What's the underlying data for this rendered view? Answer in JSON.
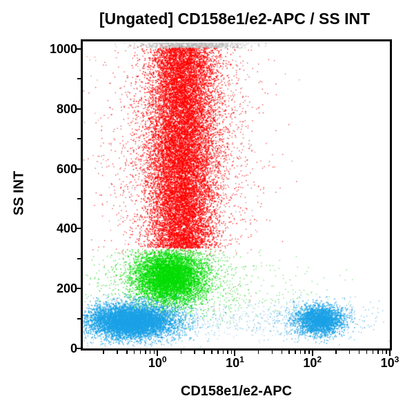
{
  "chart_data": {
    "type": "scatter",
    "title": "[Ungated] CD158e1/e2-APC / SS INT",
    "xlabel": "CD158e1/e2-APC",
    "ylabel": "SS INT",
    "x_scale": "log",
    "x_range_log10": [
      -0.964,
      3
    ],
    "y_scale": "linear",
    "y_range": [
      0,
      1025
    ],
    "grid": false,
    "legend": "none",
    "x_ticks": [
      {
        "base": "10",
        "exp": "0",
        "log10": 0
      },
      {
        "base": "10",
        "exp": "1",
        "log10": 1
      },
      {
        "base": "10",
        "exp": "2",
        "log10": 2
      },
      {
        "base": "10",
        "exp": "3",
        "log10": 3
      }
    ],
    "x_minor_tick_values": [
      0.2,
      0.3,
      0.4,
      0.5,
      0.6,
      0.7,
      0.8,
      0.9,
      2,
      3,
      4,
      5,
      6,
      7,
      8,
      9,
      20,
      30,
      40,
      50,
      60,
      70,
      80,
      90,
      200,
      300,
      400,
      500,
      600,
      700,
      800,
      900
    ],
    "y_ticks": [
      {
        "label": "0",
        "value": 0
      },
      {
        "label": "200",
        "value": 200
      },
      {
        "label": "400",
        "value": 400
      },
      {
        "label": "600",
        "value": 600
      },
      {
        "label": "800",
        "value": 800
      },
      {
        "label": "1000",
        "value": 1000
      }
    ],
    "y_minor_tick_values": [
      100,
      300,
      500,
      700,
      900
    ],
    "populations": [
      {
        "name": "saturated-events-gray",
        "color": "#bdbdbd",
        "alpha": 0.9,
        "size": 1.5,
        "count": 750,
        "x": {
          "dist": "normal",
          "mean_log": 0.45,
          "sigma_log": 0.33
        },
        "y": {
          "dist": "uniform",
          "min": 1004,
          "max": 1022
        }
      },
      {
        "name": "granulocytes-halo",
        "color": "#f20000",
        "alpha": 0.85,
        "size": 1.3,
        "count": 3000,
        "x": {
          "dist": "normal",
          "mean_log": 0.32,
          "sigma_log": 0.44
        },
        "y": {
          "dist": "normal",
          "mean": 660,
          "sigma": 215,
          "clip_min": 315,
          "clip_max": 1015
        }
      },
      {
        "name": "granulocytes-dark-speckles",
        "color": "#a80010",
        "alpha": 0.8,
        "size": 1.2,
        "count": 450,
        "x": {
          "dist": "normal",
          "mean_log": 0.32,
          "sigma_log": 0.5
        },
        "y": {
          "dist": "normal",
          "mean": 650,
          "sigma": 235,
          "clip_min": 300,
          "clip_max": 1015
        }
      },
      {
        "name": "dark-noise-speckles",
        "color": "#303030",
        "alpha": 0.7,
        "size": 1.1,
        "count": 120,
        "x": {
          "dist": "normal",
          "mean_log": 0.32,
          "sigma_log": 0.55
        },
        "y": {
          "dist": "normal",
          "mean": 640,
          "sigma": 260,
          "clip_min": 60,
          "clip_max": 1015
        }
      },
      {
        "name": "granulocytes-core",
        "color": "#ff0000",
        "alpha": 1,
        "size": 1.5,
        "count": 12500,
        "x": {
          "dist": "normal",
          "mean_log": 0.31,
          "sigma_log": 0.21
        },
        "y": {
          "dist": "uniform",
          "min": 336,
          "max": 1004
        }
      },
      {
        "name": "red-background-noise",
        "color": "#e80000",
        "alpha": 0.75,
        "size": 1.1,
        "count": 90,
        "x": {
          "dist": "uniform",
          "min_log": -0.92,
          "max_log": 1.3
        },
        "y": {
          "dist": "uniform",
          "min": 20,
          "max": 1000
        }
      },
      {
        "name": "monocytes-halo",
        "color": "#10d410",
        "alpha": 0.8,
        "size": 1.3,
        "count": 1500,
        "x": {
          "dist": "normal",
          "mean_log": 0.17,
          "sigma_log": 0.45
        },
        "y": {
          "dist": "normal",
          "mean": 228,
          "sigma": 72,
          "clip_min": 60,
          "clip_max": 334
        }
      },
      {
        "name": "monocytes-core",
        "color": "#04dc04",
        "alpha": 1,
        "size": 1.5,
        "count": 5200,
        "x": {
          "dist": "normal",
          "mean_log": 0.15,
          "sigma_log": 0.22
        },
        "y": {
          "dist": "normal",
          "mean": 240,
          "sigma": 44,
          "clip_min": 120,
          "clip_max": 332
        }
      },
      {
        "name": "green-sparse-right",
        "color": "#1ed41e",
        "alpha": 0.8,
        "size": 1.2,
        "count": 170,
        "x": {
          "dist": "normal",
          "mean_log": 1.45,
          "sigma_log": 0.6
        },
        "y": {
          "dist": "normal",
          "mean": 195,
          "sigma": 65,
          "clip_min": 60,
          "clip_max": 320
        }
      },
      {
        "name": "lymphocytes-negative-halo",
        "color": "#35a8e2",
        "alpha": 0.8,
        "size": 1.3,
        "count": 1600,
        "x": {
          "dist": "normal",
          "mean_log": -0.32,
          "sigma_log": 0.45
        },
        "y": {
          "dist": "normal",
          "mean": 94,
          "sigma": 42,
          "clip_min": 5,
          "clip_max": 185
        }
      },
      {
        "name": "lymphocytes-negative-core",
        "color": "#1ba1e6",
        "alpha": 1,
        "size": 1.5,
        "count": 6000,
        "x": {
          "dist": "normal",
          "mean_log": -0.34,
          "sigma_log": 0.27
        },
        "y": {
          "dist": "normal",
          "mean": 92,
          "sigma": 27,
          "clip_min": 10,
          "clip_max": 175
        }
      },
      {
        "name": "lymphocytes-bridge-scatter",
        "color": "#4aa6d8",
        "alpha": 0.7,
        "size": 1.1,
        "count": 260,
        "x": {
          "dist": "uniform",
          "min_log": 0.5,
          "max_log": 1.85
        },
        "y": {
          "dist": "normal",
          "mean": 100,
          "sigma": 35,
          "clip_min": 15,
          "clip_max": 180
        }
      },
      {
        "name": "cd158-positive-halo",
        "color": "#3da9e0",
        "alpha": 0.8,
        "size": 1.3,
        "count": 520,
        "x": {
          "dist": "normal",
          "mean_log": 2.0,
          "sigma_log": 0.36
        },
        "y": {
          "dist": "normal",
          "mean": 98,
          "sigma": 36,
          "clip_min": 10,
          "clip_max": 190
        }
      },
      {
        "name": "cd158-positive-core",
        "color": "#1ba1e6",
        "alpha": 1,
        "size": 1.5,
        "count": 2300,
        "x": {
          "dist": "normal",
          "mean_log": 2.09,
          "sigma_log": 0.15
        },
        "y": {
          "dist": "normal",
          "mean": 96,
          "sigma": 25,
          "clip_min": 15,
          "clip_max": 175
        }
      }
    ]
  },
  "colors": {
    "axis": "#000000",
    "background": "#ffffff",
    "red_population": "#ff0000",
    "green_population": "#04dc04",
    "cyan_population": "#1ba1e6",
    "saturated_gray": "#bdbdbd"
  }
}
